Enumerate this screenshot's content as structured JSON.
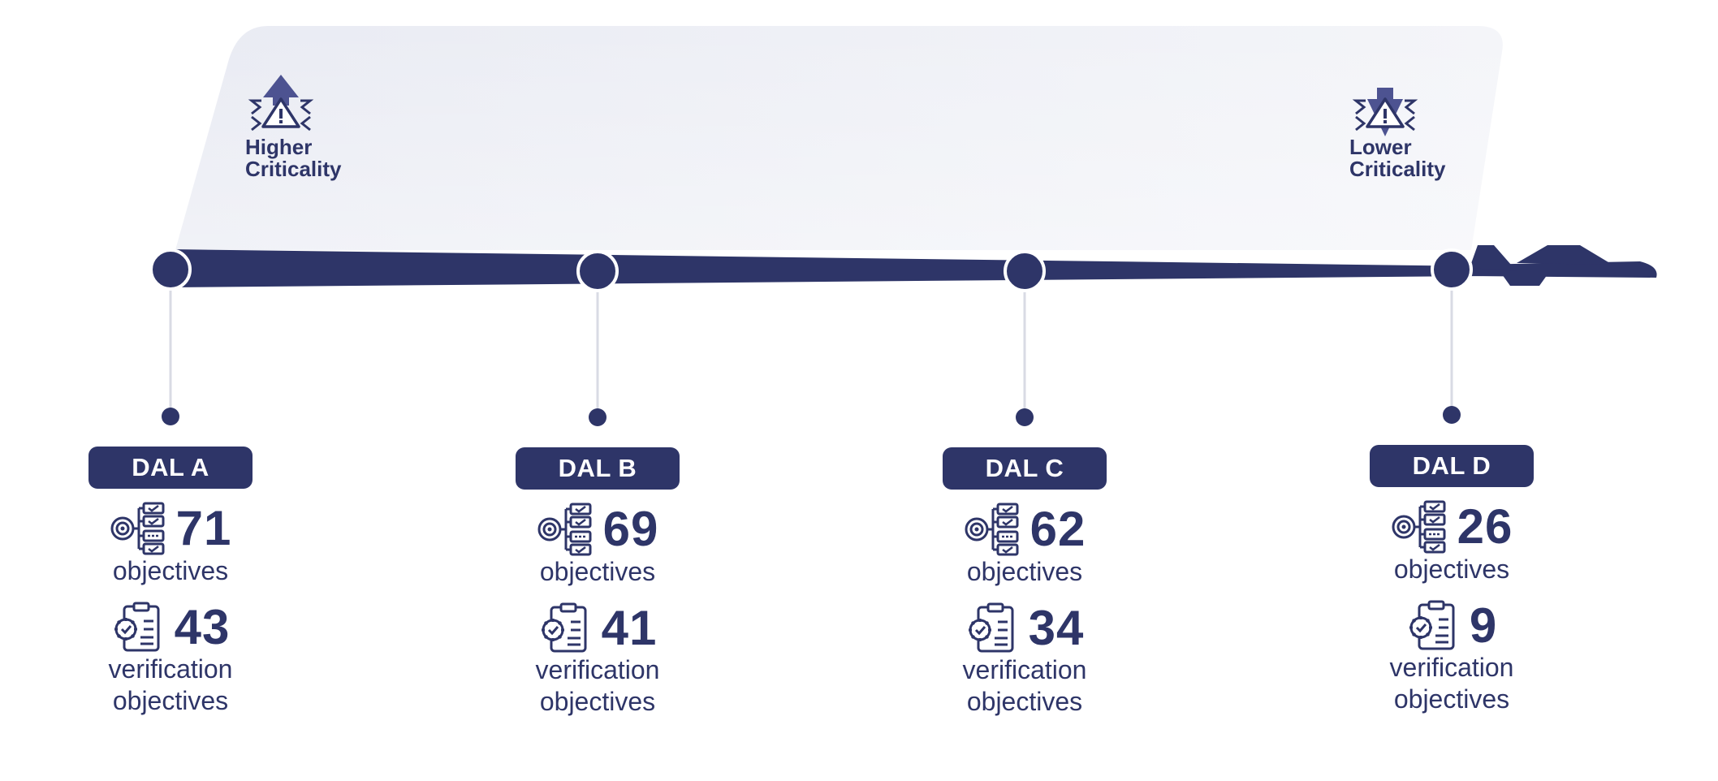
{
  "criticality": {
    "higher": "Higher\nCriticality",
    "lower": "Lower\nCriticality"
  },
  "levels": [
    {
      "dal": "DAL A",
      "objectives": "71",
      "objectives_label": "objectives",
      "verification": "43",
      "verification_label": "verification\nobjectives"
    },
    {
      "dal": "DAL B",
      "objectives": "69",
      "objectives_label": "objectives",
      "verification": "41",
      "verification_label": "verification\nobjectives"
    },
    {
      "dal": "DAL C",
      "objectives": "62",
      "objectives_label": "objectives",
      "verification": "34",
      "verification_label": "verification\nobjectives"
    },
    {
      "dal": "DAL D",
      "objectives": "26",
      "objectives_label": "objectives",
      "verification": "9",
      "verification_label": "verification\nobjectives"
    }
  ],
  "icons": {
    "higher": "warning-up-icon",
    "lower": "warning-down-icon",
    "objectives": "checklist-target-icon",
    "verification": "clipboard-check-icon"
  },
  "colors": {
    "navy": "#2e3568",
    "band": "#eef0f6",
    "connector": "#d9dbe4"
  }
}
